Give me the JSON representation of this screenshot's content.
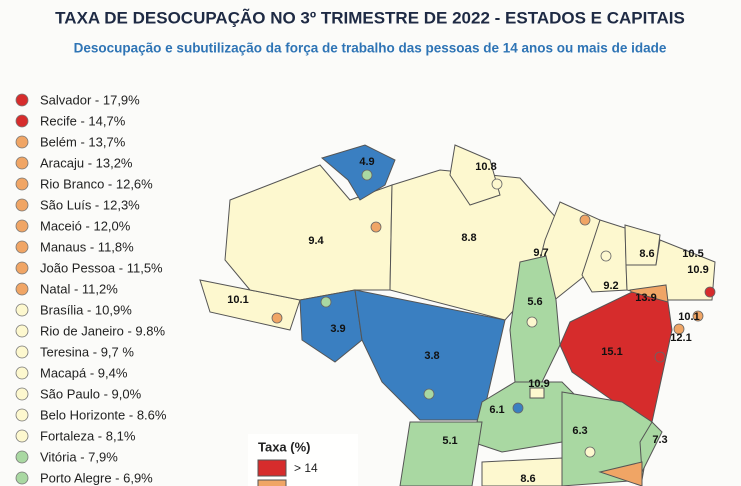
{
  "header": {
    "title": "TAXA DE DESOCUPAÇÃO NO 3º TRIMESTRE DE 2022 - ESTADOS E CAPITAIS",
    "subtitle": "Desocupação e subutilização da força de trabalho das pessoas de 14 anos ou mais de idade"
  },
  "capitals": [
    {
      "label": "Salvador - 17,9%",
      "color": "#d62c2c"
    },
    {
      "label": "Recife - 14,7%",
      "color": "#d62c2c"
    },
    {
      "label": "Belém - 13,7%",
      "color": "#f0a565"
    },
    {
      "label": "Aracaju - 13,2%",
      "color": "#f0a565"
    },
    {
      "label": "Rio Branco - 12,6%",
      "color": "#f0a565"
    },
    {
      "label": "São Luís - 12,3%",
      "color": "#f0a565"
    },
    {
      "label": "Maceió - 12,0%",
      "color": "#f0a565"
    },
    {
      "label": "Manaus - 11,8%",
      "color": "#f0a565"
    },
    {
      "label": "João Pessoa - 11,5%",
      "color": "#f0a565"
    },
    {
      "label": "Natal - 11,2%",
      "color": "#f0a565"
    },
    {
      "label": "Brasília - 10,9%",
      "color": "#fdf8cf"
    },
    {
      "label": "Rio de Janeiro - 9.8%",
      "color": "#fdf8cf"
    },
    {
      "label": "Teresina - 9,7 %",
      "color": "#fdf8cf"
    },
    {
      "label": "Macapá - 9,4%",
      "color": "#fdf8cf"
    },
    {
      "label": "São Paulo - 9,0%",
      "color": "#fdf8cf"
    },
    {
      "label": "Belo Horizonte - 8.6%",
      "color": "#fdf8cf"
    },
    {
      "label": "Fortaleza - 8,1%",
      "color": "#fdf8cf"
    },
    {
      "label": "Vitória - 7,9%",
      "color": "#a9d8a2"
    },
    {
      "label": "Porto Alegre - 6,9%",
      "color": "#a9d8a2"
    }
  ],
  "map_labels": [
    "4.9",
    "10.8",
    "9.4",
    "8.8",
    "9.7",
    "8.6",
    "10.5",
    "10.9",
    "9.2",
    "13.9",
    "10.1",
    "12.1",
    "10.1",
    "5.6",
    "3.9",
    "3.8",
    "15.1",
    "10.9",
    "6.1",
    "6.3",
    "7.3",
    "5.1",
    "8.6"
  ],
  "legend": {
    "title": "Taxa (%)",
    "items": [
      {
        "label": "> 14",
        "color": "#d62c2c"
      }
    ]
  }
}
